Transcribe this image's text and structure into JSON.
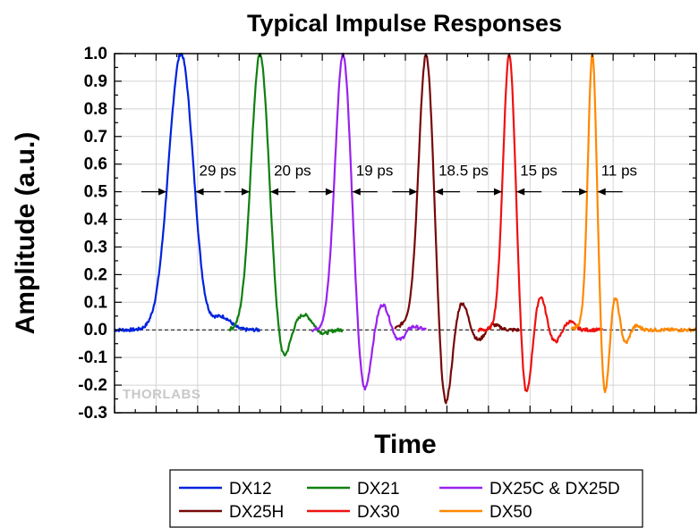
{
  "chart_data": {
    "type": "line",
    "title": "Typical Impulse Responses",
    "xlabel": "Time",
    "ylabel": "Amplitude (a.u.)",
    "xlim": [
      0,
      280
    ],
    "ylim": [
      -0.3,
      1.0
    ],
    "yticks": [
      "1.0",
      "0.9",
      "0.8",
      "0.7",
      "0.6",
      "0.5",
      "0.4",
      "0.3",
      "0.2",
      "0.1",
      "0.0",
      "-0.1",
      "-0.2",
      "-0.3"
    ],
    "grid": true,
    "legend_position": "bottom",
    "zero_line": "dashed",
    "watermark": "THORLABS",
    "series": [
      {
        "name": "DX12",
        "color": "#0022dd",
        "x_start": 0,
        "x_end": 70,
        "peak_x": 32,
        "fwhm": 14,
        "lobes": [
          [
            42,
            -0.03,
            3
          ],
          [
            52,
            0.045,
            4
          ]
        ]
      },
      {
        "name": "DX21",
        "color": "#108010",
        "x_start": 55,
        "x_end": 110,
        "peak_x": 70,
        "fwhm": 10,
        "lobes": [
          [
            81,
            -0.12,
            3
          ],
          [
            91,
            0.055,
            4
          ],
          [
            100,
            -0.015,
            3
          ]
        ]
      },
      {
        "name": "DX25C & DX25D",
        "color": "#9922ee",
        "x_start": 95,
        "x_end": 150,
        "peak_x": 110,
        "fwhm": 9,
        "lobes": [
          [
            120,
            -0.24,
            3
          ],
          [
            129,
            0.095,
            3
          ],
          [
            137,
            -0.04,
            3
          ],
          [
            143,
            0.015,
            3
          ]
        ]
      },
      {
        "name": "DX25H",
        "color": "#770808",
        "x_start": 135,
        "x_end": 195,
        "peak_x": 150,
        "fwhm": 8.5,
        "lobes": [
          [
            140,
            0.02,
            3
          ],
          [
            159,
            -0.3,
            3
          ],
          [
            167,
            0.105,
            3
          ],
          [
            175,
            -0.04,
            3
          ],
          [
            182,
            0.02,
            3
          ]
        ]
      },
      {
        "name": "DX30",
        "color": "#ee1111",
        "x_start": 175,
        "x_end": 235,
        "peak_x": 190,
        "fwhm": 7,
        "lobes": [
          [
            198,
            -0.25,
            2.5
          ],
          [
            205,
            0.125,
            2.5
          ],
          [
            212,
            -0.045,
            2.5
          ],
          [
            219,
            0.03,
            2.5
          ]
        ]
      },
      {
        "name": "DX50",
        "color": "#ff8800",
        "x_start": 220,
        "x_end": 280,
        "peak_x": 230,
        "fwhm": 5,
        "lobes": [
          [
            224,
            0.015,
            2
          ],
          [
            236,
            -0.24,
            1.8
          ],
          [
            241,
            0.12,
            1.8
          ],
          [
            246,
            -0.05,
            1.8
          ],
          [
            251,
            0.015,
            2
          ]
        ]
      }
    ],
    "annotations": [
      {
        "label": "29 ps",
        "left_x": 25,
        "right_x": 39
      },
      {
        "label": "20 ps",
        "left_x": 65,
        "right_x": 75
      },
      {
        "label": "19 ps",
        "left_x": 105.5,
        "right_x": 114.5
      },
      {
        "label": "18.5 ps",
        "left_x": 145.75,
        "right_x": 154.25
      },
      {
        "label": "15 ps",
        "left_x": 186.5,
        "right_x": 193.5
      },
      {
        "label": "11 ps",
        "left_x": 227.5,
        "right_x": 232.5
      }
    ]
  }
}
